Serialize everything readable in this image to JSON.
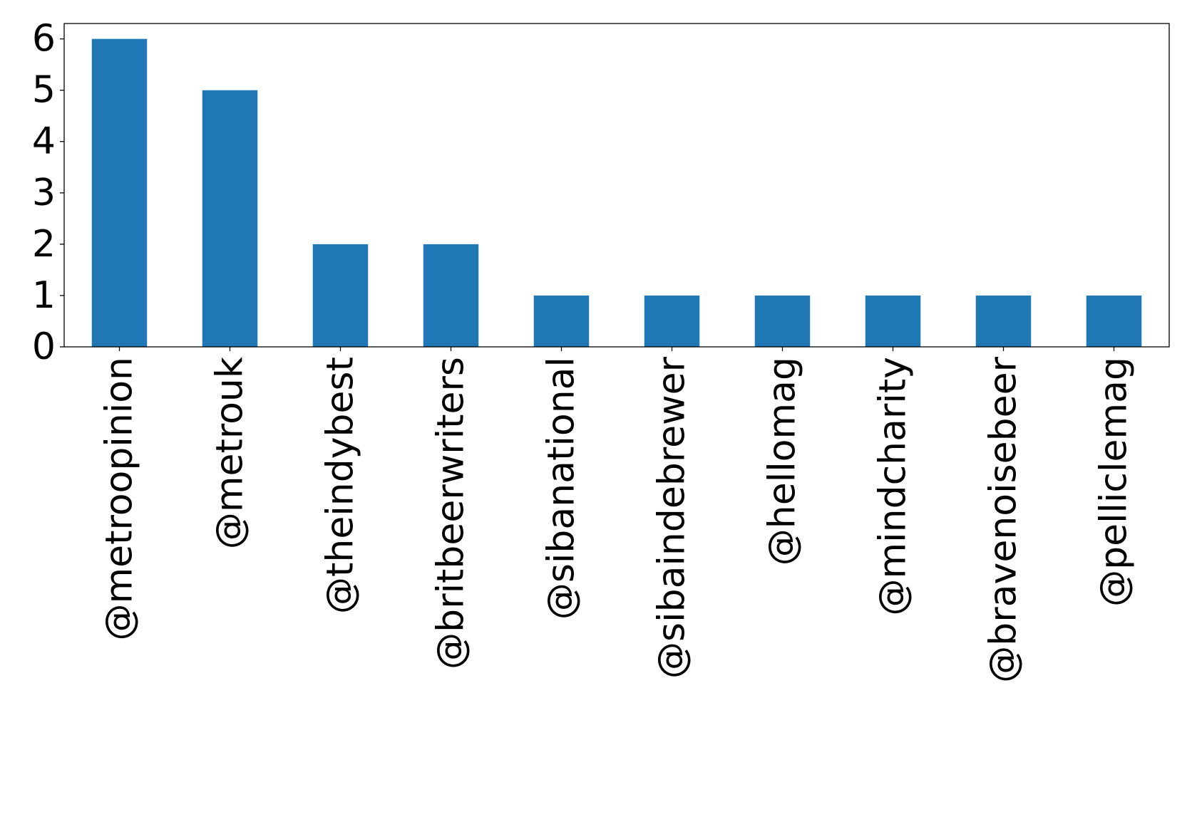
{
  "chart_data": {
    "type": "bar",
    "title": "",
    "xlabel": "",
    "ylabel": "",
    "categories": [
      "@metroopinion",
      "@metrouk",
      "@theindybest",
      "@britbeerwriters",
      "@sibanational",
      "@sibaindebrewer",
      "@hellomag",
      "@mindcharity",
      "@bravenoisebeer",
      "@pelliclemag"
    ],
    "values": [
      6,
      5,
      2,
      2,
      1,
      1,
      1,
      1,
      1,
      1
    ],
    "ylim": [
      0,
      6.3
    ],
    "yticks": [
      "0",
      "1",
      "2",
      "3",
      "4",
      "5",
      "6"
    ],
    "grid": false,
    "legend": "none",
    "bar_color": "#1f77b4",
    "xtick_rotation": 90
  }
}
